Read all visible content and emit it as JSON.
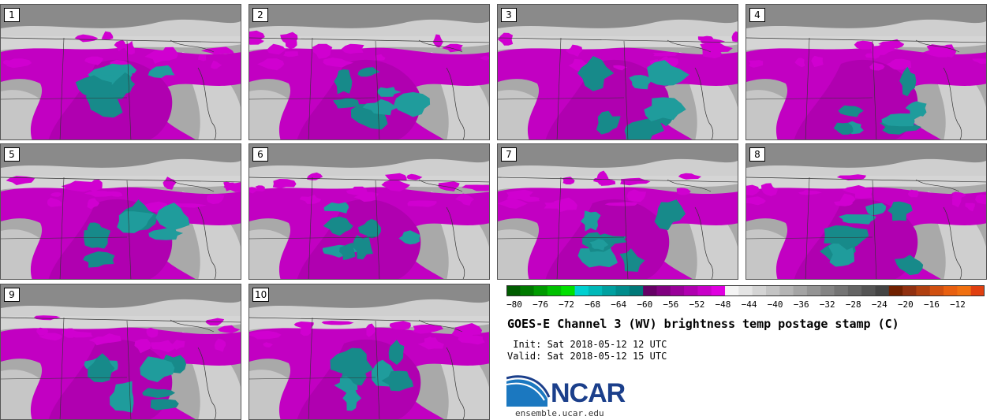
{
  "panels": [
    {
      "label": "1"
    },
    {
      "label": "2"
    },
    {
      "label": "3"
    },
    {
      "label": "4"
    },
    {
      "label": "5"
    },
    {
      "label": "6"
    },
    {
      "label": "7"
    },
    {
      "label": "8"
    },
    {
      "label": "9"
    },
    {
      "label": "10"
    }
  ],
  "colorbar": {
    "ticks": [
      "−80",
      "−76",
      "−72",
      "−68",
      "−64",
      "−60",
      "−56",
      "−52",
      "−48",
      "−44",
      "−40",
      "−36",
      "−32",
      "−28",
      "−24",
      "−20",
      "−16",
      "−12"
    ],
    "colors": [
      "#005c00",
      "#007a00",
      "#009a00",
      "#00c000",
      "#00e000",
      "#00d0d0",
      "#00b8b8",
      "#00a0a0",
      "#008c8c",
      "#007878",
      "#660066",
      "#800080",
      "#990099",
      "#b000b0",
      "#c800c8",
      "#e000e0",
      "#f4f4f4",
      "#e4e4e4",
      "#d4d4d4",
      "#c4c4c4",
      "#b4b4b4",
      "#a4a4a4",
      "#949494",
      "#848484",
      "#747474",
      "#646464",
      "#545454",
      "#444444",
      "#702000",
      "#903010",
      "#b04010",
      "#d05010",
      "#e86010",
      "#f07010",
      "#e04010"
    ]
  },
  "title": "GOES-E Channel 3 (WV) brightness temp postage stamp (C)",
  "init_line": " Init: Sat 2018-05-12 12 UTC",
  "valid_line": "Valid: Sat 2018-05-12 15 UTC",
  "logo": {
    "text": "NCAR",
    "site": "ensemble.ucar.edu"
  }
}
